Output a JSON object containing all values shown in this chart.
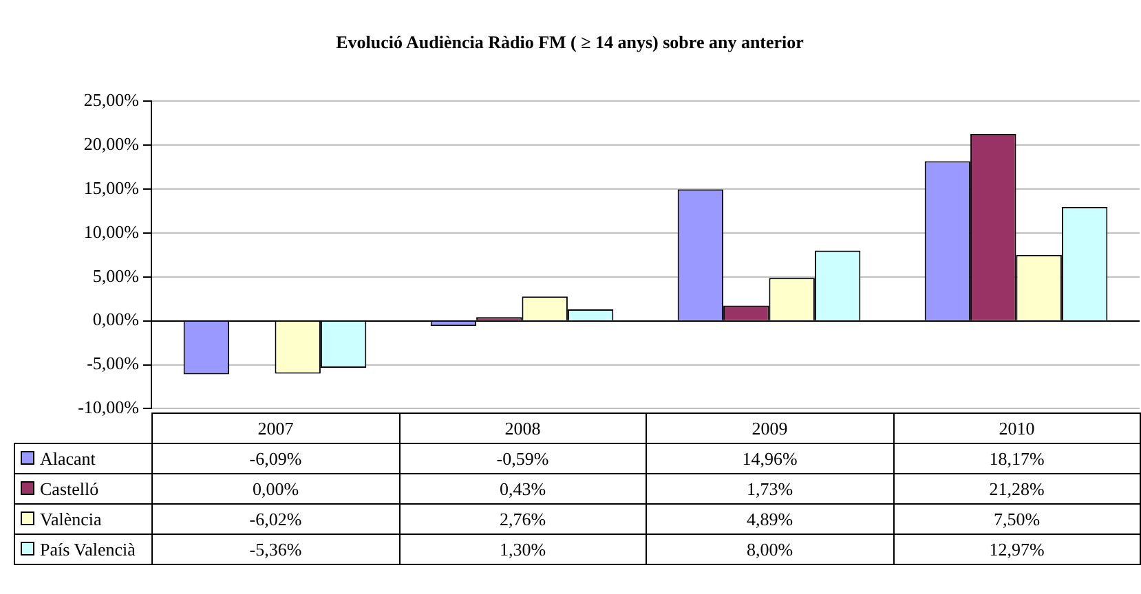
{
  "chart_data": {
    "type": "bar",
    "title": "Evolució Audiència Ràdio FM ( ≥ 14 anys) sobre any anterior",
    "categories": [
      "2007",
      "2008",
      "2009",
      "2010"
    ],
    "series": [
      {
        "name": "Alacant",
        "color": "#9999ff",
        "values": [
          -6.09,
          -0.59,
          14.96,
          18.17
        ],
        "value_labels": [
          "-6,09%",
          "-0,59%",
          "14,96%",
          "18,17%"
        ]
      },
      {
        "name": "Castelló",
        "color": "#993366",
        "values": [
          0,
          0.43,
          1.73,
          21.28
        ],
        "value_labels": [
          "0,00%",
          "0,43%",
          "1,73%",
          "21,28%"
        ]
      },
      {
        "name": "València",
        "color": "#ffffcc",
        "values": [
          -6.02,
          2.76,
          4.89,
          7.5
        ],
        "value_labels": [
          "-6,02%",
          "2,76%",
          "4,89%",
          "7,50%"
        ]
      },
      {
        "name": "País Valencià",
        "color": "#ccffff",
        "values": [
          -5.36,
          1.3,
          8,
          12.97
        ],
        "value_labels": [
          "-5,36%",
          "1,30%",
          "8,00%",
          "12,97%"
        ]
      }
    ],
    "ylim": [
      -10,
      25
    ],
    "yticks": [
      {
        "value": -10,
        "label": "-10,00%"
      },
      {
        "value": -5,
        "label": "-5,00%"
      },
      {
        "value": 0,
        "label": "0,00%"
      },
      {
        "value": 5,
        "label": "5,00%"
      },
      {
        "value": 10,
        "label": "10,00%"
      },
      {
        "value": 15,
        "label": "15,00%"
      },
      {
        "value": 20,
        "label": "20,00%"
      },
      {
        "value": 25,
        "label": "25,00%"
      }
    ],
    "grid": "y",
    "legend": "bottom"
  }
}
